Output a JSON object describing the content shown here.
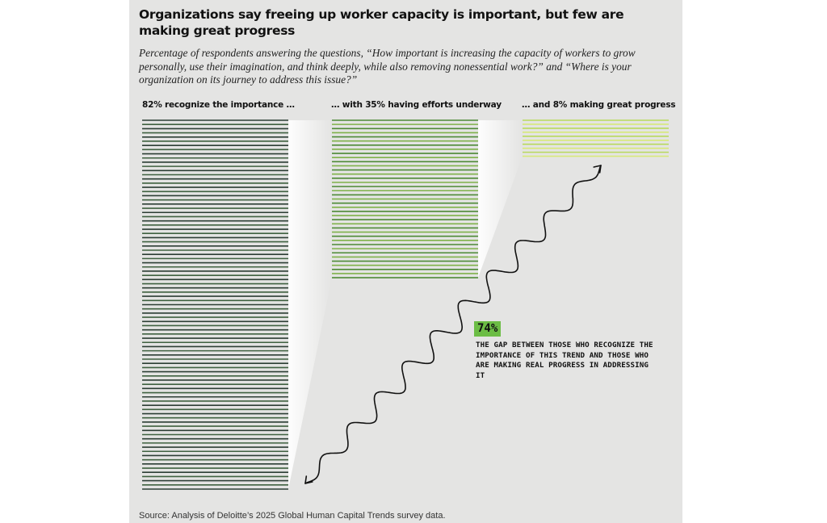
{
  "title": "Organizations say freeing up worker capacity is important, but few are making great progress",
  "subtitle": "Percentage of respondents answering the questions, “How important is increasing the capacity of workers to grow personally, use their imagination, and think deeply, while also removing nonessential work?” and “Where is your organization on its journey to address this issue?”",
  "source": "Source: Analysis of Deloitte’s 2025 Global Human Capital Trends survey data.",
  "annotation": {
    "value": "74%",
    "text": "The gap between those who recognize the importance of this trend and those who are making real progress in addressing it"
  },
  "colors": {
    "panel": "#e4e4e3",
    "bar_dark": "#2f4a3a",
    "bar_mid": "#5f9a3e",
    "bar_light": "#c9e06a",
    "badge": "#6cbd45"
  },
  "chart_data": {
    "type": "bar",
    "categories": [
      "82% recognize the importance …",
      "… with 35% having efforts underway",
      "… and 8% making great progress"
    ],
    "values": [
      82,
      35,
      8
    ],
    "unit": "%",
    "title": "Organizations say freeing up worker capacity is important, but few are making great progress",
    "xlabel": "",
    "ylabel": "",
    "grid": false,
    "legend": "none",
    "gap_annotation": 74
  }
}
